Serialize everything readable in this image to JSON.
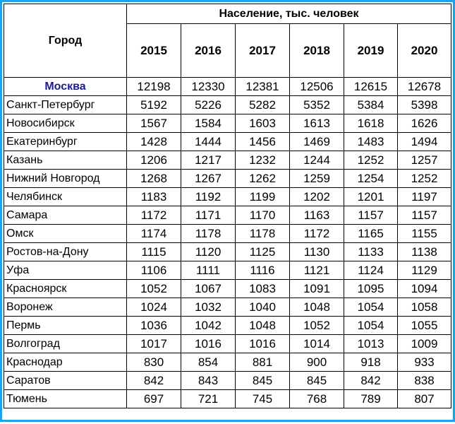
{
  "table": {
    "city_header": "Город",
    "group_header": "Население, тыс. человек",
    "years": [
      "2015",
      "2016",
      "2017",
      "2018",
      "2019",
      "2020"
    ],
    "highlight_color": "#1c1c8f",
    "border_color": "#1fa2e8",
    "rows": [
      {
        "city": "Москва",
        "values": [
          "12198",
          "12330",
          "12381",
          "12506",
          "12615",
          "12678"
        ]
      },
      {
        "city": "Санкт-Петербург",
        "values": [
          "5192",
          "5226",
          "5282",
          "5352",
          "5384",
          "5398"
        ]
      },
      {
        "city": "Новосибирск",
        "values": [
          "1567",
          "1584",
          "1603",
          "1613",
          "1618",
          "1626"
        ]
      },
      {
        "city": "Екатеринбург",
        "values": [
          "1428",
          "1444",
          "1456",
          "1469",
          "1483",
          "1494"
        ]
      },
      {
        "city": "Казань",
        "values": [
          "1206",
          "1217",
          "1232",
          "1244",
          "1252",
          "1257"
        ]
      },
      {
        "city": "Нижний Новгород",
        "values": [
          "1268",
          "1267",
          "1262",
          "1259",
          "1254",
          "1252"
        ]
      },
      {
        "city": "Челябинск",
        "values": [
          "1183",
          "1192",
          "1199",
          "1202",
          "1201",
          "1197"
        ]
      },
      {
        "city": "Самара",
        "values": [
          "1172",
          "1171",
          "1170",
          "1163",
          "1157",
          "1157"
        ]
      },
      {
        "city": "Омск",
        "values": [
          "1174",
          "1178",
          "1178",
          "1172",
          "1165",
          "1155"
        ]
      },
      {
        "city": "Ростов-на-Дону",
        "values": [
          "1115",
          "1120",
          "1125",
          "1130",
          "1133",
          "1138"
        ]
      },
      {
        "city": "Уфа",
        "values": [
          "1106",
          "1111",
          "1116",
          "1121",
          "1124",
          "1129"
        ]
      },
      {
        "city": "Красноярск",
        "values": [
          "1052",
          "1067",
          "1083",
          "1091",
          "1095",
          "1094"
        ]
      },
      {
        "city": "Воронеж",
        "values": [
          "1024",
          "1032",
          "1040",
          "1048",
          "1054",
          "1058"
        ]
      },
      {
        "city": "Пермь",
        "values": [
          "1036",
          "1042",
          "1048",
          "1052",
          "1054",
          "1055"
        ]
      },
      {
        "city": "Волгоград",
        "values": [
          "1017",
          "1016",
          "1016",
          "1014",
          "1013",
          "1009"
        ]
      },
      {
        "city": "Краснодар",
        "values": [
          "830",
          "854",
          "881",
          "900",
          "918",
          "933"
        ]
      },
      {
        "city": "Саратов",
        "values": [
          "842",
          "843",
          "845",
          "845",
          "842",
          "838"
        ]
      },
      {
        "city": "Тюмень",
        "values": [
          "697",
          "721",
          "745",
          "768",
          "789",
          "807"
        ]
      }
    ]
  }
}
